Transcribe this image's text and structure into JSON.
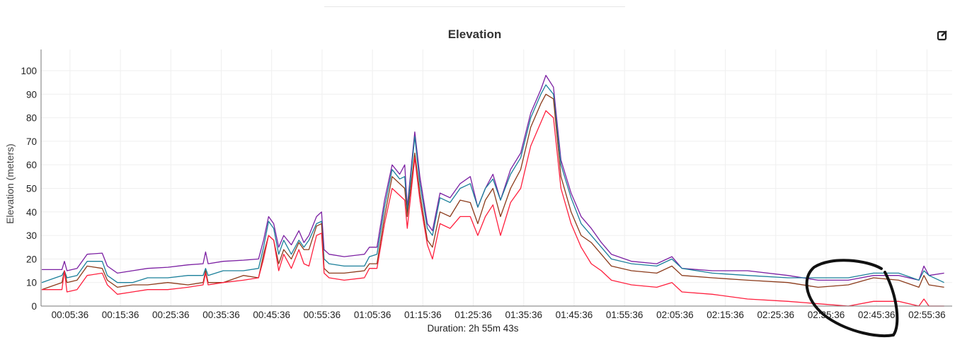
{
  "chart_data": {
    "type": "line",
    "title": "Elevation",
    "xlabel": "Duration: 2h 55m 43s",
    "ylabel": "Elevation (meters)",
    "x_unit": "minutes",
    "xlim": [
      0,
      180.6
    ],
    "ylim": [
      0,
      109
    ],
    "grid": true,
    "y_ticks": [
      0,
      10,
      20,
      30,
      40,
      50,
      60,
      70,
      80,
      90,
      100
    ],
    "x_tick_labels": [
      "00:05:36",
      "00:15:36",
      "00:25:36",
      "00:35:36",
      "00:45:36",
      "00:55:36",
      "01:05:36",
      "01:15:36",
      "01:25:36",
      "01:35:36",
      "01:45:36",
      "01:55:36",
      "02:05:36",
      "02:15:36",
      "02:25:36",
      "02:35:36",
      "02:45:36",
      "02:55:36"
    ],
    "x": [
      0,
      4,
      4.5,
      5,
      7,
      9,
      12,
      13,
      15,
      18,
      21,
      25,
      29,
      32,
      32.5,
      33,
      36,
      40,
      43,
      44,
      45,
      46,
      47,
      48,
      49.5,
      51,
      52,
      53,
      54.5,
      55.5,
      56,
      57,
      60,
      64,
      65,
      66.5,
      68,
      69.5,
      71,
      72,
      72.5,
      74,
      75,
      76.5,
      77.5,
      79,
      81,
      83,
      85,
      86.5,
      88,
      89.5,
      91,
      93,
      95,
      97,
      99,
      100,
      101.5,
      103,
      105,
      107,
      109,
      111,
      113,
      117,
      122,
      125,
      127,
      133,
      140,
      148,
      154,
      160,
      165,
      170,
      174,
      175,
      176,
      179
    ],
    "series": [
      {
        "name": "purple",
        "color": "#7b1fa2",
        "values": [
          15.5,
          15.5,
          19,
          15,
          16,
          22,
          22.5,
          17,
          14,
          15,
          16,
          16.5,
          17.5,
          18,
          23,
          18,
          19,
          19.5,
          20,
          28,
          38,
          35,
          25,
          30,
          26,
          32,
          27,
          30,
          38,
          40,
          24,
          22,
          21,
          22,
          25,
          25,
          45,
          60,
          56,
          60,
          42,
          74,
          55,
          35,
          32,
          48,
          46,
          52,
          55,
          42,
          50,
          56,
          45,
          58,
          65,
          82,
          92,
          98,
          93,
          62,
          48,
          38,
          33,
          27,
          22,
          19,
          18,
          21,
          16,
          15,
          15,
          13,
          11,
          11,
          13,
          13,
          11,
          17,
          13,
          14
        ]
      },
      {
        "name": "teal",
        "color": "#1a7f9a",
        "values": [
          10,
          13,
          15,
          12,
          13,
          19,
          19,
          13,
          10,
          10,
          12,
          12,
          13,
          13,
          16,
          13,
          15,
          15,
          16,
          25,
          36,
          33,
          22,
          28,
          22,
          28,
          25,
          28,
          35,
          36,
          20,
          18,
          17,
          17,
          21,
          22,
          42,
          58,
          54,
          55,
          40,
          72,
          52,
          33,
          30,
          46,
          44,
          50,
          52,
          42,
          50,
          54,
          45,
          56,
          63,
          80,
          90,
          94,
          90,
          60,
          46,
          35,
          30,
          25,
          20,
          18,
          17,
          20,
          16,
          14,
          13,
          12,
          12,
          12,
          14,
          14,
          11,
          15,
          13,
          10
        ]
      },
      {
        "name": "brown",
        "color": "#8b3a1a",
        "values": [
          7,
          10,
          15,
          10,
          11,
          17,
          16,
          11,
          8,
          9,
          9,
          10,
          9,
          10,
          15,
          10,
          10,
          13,
          12,
          22,
          30,
          28,
          18,
          24,
          20,
          27,
          24,
          24,
          34,
          35,
          16,
          14,
          14,
          15,
          18,
          18,
          38,
          55,
          52,
          50,
          38,
          65,
          48,
          28,
          25,
          40,
          38,
          45,
          44,
          35,
          45,
          50,
          38,
          50,
          58,
          76,
          86,
          90,
          88,
          55,
          40,
          30,
          27,
          22,
          17,
          15,
          14,
          17,
          13,
          12,
          11,
          10,
          8,
          9,
          12,
          11,
          8,
          13,
          9,
          8
        ]
      },
      {
        "name": "red",
        "color": "#ff1f3d",
        "values": [
          7,
          7,
          15,
          6,
          7,
          13,
          14,
          9,
          5,
          6,
          7,
          7,
          8,
          9,
          14,
          9,
          10,
          11,
          12,
          20,
          30,
          28,
          15,
          22,
          16,
          24,
          18,
          17,
          30,
          31,
          14,
          12,
          11,
          12,
          16,
          16,
          35,
          50,
          47,
          45,
          33,
          63,
          45,
          26,
          20,
          35,
          33,
          38,
          38,
          30,
          38,
          43,
          30,
          44,
          50,
          68,
          78,
          83,
          80,
          50,
          35,
          25,
          18,
          15,
          11,
          9,
          8,
          10,
          6,
          5,
          3,
          2,
          1,
          0,
          2,
          2,
          0,
          3,
          0,
          0
        ]
      }
    ]
  },
  "icons": {
    "edit": "edit-square-icon"
  }
}
